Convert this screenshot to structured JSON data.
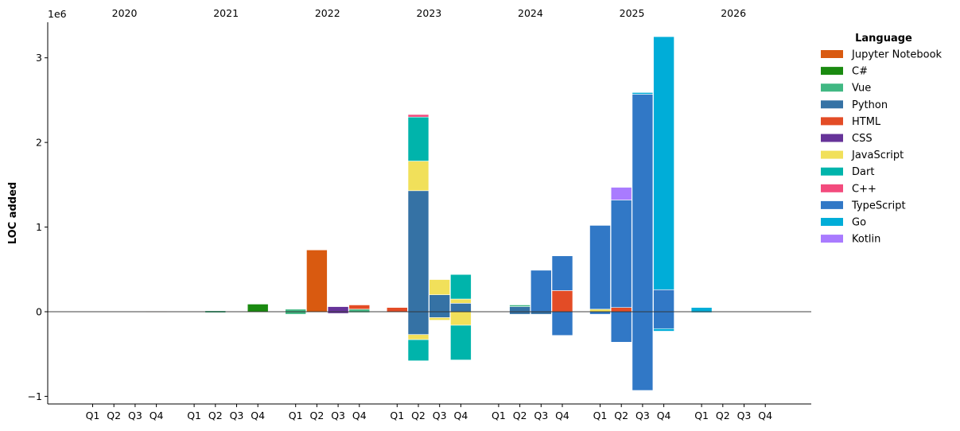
{
  "chart_data": {
    "type": "bar",
    "stacked": true,
    "ylabel": "LOC added",
    "y_offset_label": "1e6",
    "ylim": [
      -1.09,
      3.42
    ],
    "yticks": [
      -1,
      0,
      1,
      2,
      3
    ],
    "ytick_labels": [
      "−1",
      "0",
      "1",
      "2",
      "3"
    ],
    "years": [
      "2020",
      "2021",
      "2022",
      "2023",
      "2024",
      "2025",
      "2026"
    ],
    "quarters": [
      "Q1",
      "Q2",
      "Q3",
      "Q4"
    ],
    "legend": {
      "title": "Language",
      "placement": "right",
      "entries": [
        {
          "name": "Jupyter Notebook",
          "color": "#d95a10"
        },
        {
          "name": "C#",
          "color": "#1a8a10"
        },
        {
          "name": "Vue",
          "color": "#41b883"
        },
        {
          "name": "Python",
          "color": "#3572a5"
        },
        {
          "name": "HTML",
          "color": "#e34c26"
        },
        {
          "name": "CSS",
          "color": "#663399"
        },
        {
          "name": "JavaScript",
          "color": "#f1e05a"
        },
        {
          "name": "Dart",
          "color": "#00b4ab"
        },
        {
          "name": "C++",
          "color": "#f34b7d"
        },
        {
          "name": "TypeScript",
          "color": "#3178c6"
        },
        {
          "name": "Go",
          "color": "#00add8"
        },
        {
          "name": "Kotlin",
          "color": "#a97bff"
        }
      ]
    },
    "bars": [
      {
        "year": "2020",
        "quarter": "Q4",
        "segments": [
          {
            "lang": "Jupyter Notebook",
            "value": 0.005
          }
        ]
      },
      {
        "year": "2021",
        "quarter": "Q2",
        "segments": [
          {
            "lang": "Vue",
            "value": 0.012
          },
          {
            "lang": "Vue",
            "value": -0.012
          }
        ]
      },
      {
        "year": "2021",
        "quarter": "Q4",
        "segments": [
          {
            "lang": "C#",
            "value": 0.09
          }
        ]
      },
      {
        "year": "2022",
        "quarter": "Q1",
        "segments": [
          {
            "lang": "Vue",
            "value": 0.03
          },
          {
            "lang": "Vue",
            "value": -0.03
          }
        ]
      },
      {
        "year": "2022",
        "quarter": "Q2",
        "segments": [
          {
            "lang": "Jupyter Notebook",
            "value": 0.73
          }
        ]
      },
      {
        "year": "2022",
        "quarter": "Q3",
        "segments": [
          {
            "lang": "CSS",
            "value": 0.06
          },
          {
            "lang": "CSS",
            "value": -0.02
          }
        ]
      },
      {
        "year": "2022",
        "quarter": "Q4",
        "segments": [
          {
            "lang": "Vue",
            "value": 0.03
          },
          {
            "lang": "HTML",
            "value": 0.05
          },
          {
            "lang": "Vue",
            "value": -0.01
          }
        ]
      },
      {
        "year": "2023",
        "quarter": "Q1",
        "segments": [
          {
            "lang": "HTML",
            "value": 0.05
          }
        ]
      },
      {
        "year": "2023",
        "quarter": "Q2",
        "segments": [
          {
            "lang": "Python",
            "value": 1.43
          },
          {
            "lang": "JavaScript",
            "value": 0.35
          },
          {
            "lang": "Dart",
            "value": 0.52
          },
          {
            "lang": "C++",
            "value": 0.03
          },
          {
            "lang": "Python",
            "value": -0.27
          },
          {
            "lang": "JavaScript",
            "value": -0.06
          },
          {
            "lang": "Dart",
            "value": -0.25
          }
        ]
      },
      {
        "year": "2023",
        "quarter": "Q3",
        "segments": [
          {
            "lang": "Python",
            "value": 0.2
          },
          {
            "lang": "JavaScript",
            "value": 0.18
          },
          {
            "lang": "Python",
            "value": -0.07
          },
          {
            "lang": "JavaScript",
            "value": -0.03
          }
        ]
      },
      {
        "year": "2023",
        "quarter": "Q4",
        "segments": [
          {
            "lang": "Python",
            "value": 0.1
          },
          {
            "lang": "JavaScript",
            "value": 0.05
          },
          {
            "lang": "Dart",
            "value": 0.29
          },
          {
            "lang": "JavaScript",
            "value": -0.16
          },
          {
            "lang": "Dart",
            "value": -0.41
          }
        ]
      },
      {
        "year": "2024",
        "quarter": "Q2",
        "segments": [
          {
            "lang": "Python",
            "value": 0.06
          },
          {
            "lang": "Vue",
            "value": 0.02
          },
          {
            "lang": "Python",
            "value": -0.03
          }
        ]
      },
      {
        "year": "2024",
        "quarter": "Q3",
        "segments": [
          {
            "lang": "TypeScript",
            "value": 0.49
          },
          {
            "lang": "Python",
            "value": -0.03
          }
        ]
      },
      {
        "year": "2024",
        "quarter": "Q4",
        "segments": [
          {
            "lang": "HTML",
            "value": 0.25
          },
          {
            "lang": "TypeScript",
            "value": 0.41
          },
          {
            "lang": "TypeScript",
            "value": -0.28
          }
        ]
      },
      {
        "year": "2025",
        "quarter": "Q1",
        "segments": [
          {
            "lang": "JavaScript",
            "value": 0.03
          },
          {
            "lang": "TypeScript",
            "value": 0.99
          },
          {
            "lang": "TypeScript",
            "value": -0.03
          }
        ]
      },
      {
        "year": "2025",
        "quarter": "Q2",
        "segments": [
          {
            "lang": "HTML",
            "value": 0.05
          },
          {
            "lang": "TypeScript",
            "value": 1.27
          },
          {
            "lang": "Kotlin",
            "value": 0.15
          },
          {
            "lang": "TypeScript",
            "value": -0.36
          }
        ]
      },
      {
        "year": "2025",
        "quarter": "Q3",
        "segments": [
          {
            "lang": "TypeScript",
            "value": 2.57
          },
          {
            "lang": "Go",
            "value": 0.02
          },
          {
            "lang": "TypeScript",
            "value": -0.93
          }
        ]
      },
      {
        "year": "2025",
        "quarter": "Q4",
        "segments": [
          {
            "lang": "TypeScript",
            "value": 0.26
          },
          {
            "lang": "Go",
            "value": 2.99
          },
          {
            "lang": "TypeScript",
            "value": -0.2
          },
          {
            "lang": "Go",
            "value": -0.03
          }
        ]
      },
      {
        "year": "2026",
        "quarter": "Q1",
        "segments": [
          {
            "lang": "Go",
            "value": 0.05
          },
          {
            "lang": "Go",
            "value": -0.01
          }
        ]
      }
    ]
  }
}
